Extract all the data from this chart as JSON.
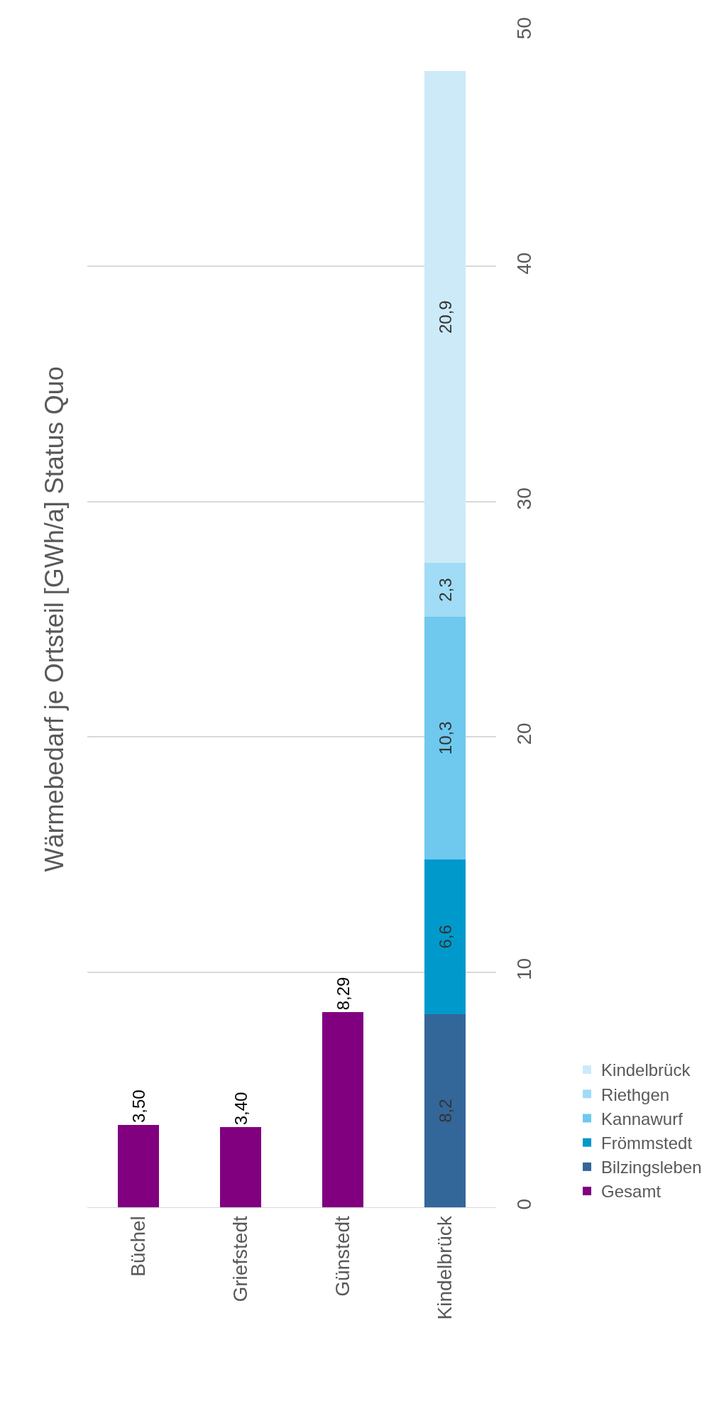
{
  "chart_data": {
    "type": "bar",
    "title": "Wärmebedarf je Ortsteil [GWh/a] Status Quo",
    "categories": [
      "Büchel",
      "Griefstedt",
      "Günstedt",
      "Kindelbrück"
    ],
    "stacked": true,
    "ylim": [
      0,
      50
    ],
    "yticks": [
      0,
      10,
      20,
      30,
      40,
      50
    ],
    "grid": "y",
    "legend": "right",
    "series": [
      {
        "name": "Gesamt",
        "color": "#800080",
        "values": [
          3.5,
          3.4,
          8.29,
          null
        ],
        "value_labels": [
          "3,50",
          "3,40",
          "8,29",
          null
        ]
      },
      {
        "name": "Bilzingsleben",
        "color": "#336699",
        "values": [
          null,
          null,
          null,
          8.2
        ],
        "value_labels": [
          null,
          null,
          null,
          "8,2"
        ]
      },
      {
        "name": "Frömmstedt",
        "color": "#0099cc",
        "values": [
          null,
          null,
          null,
          6.6
        ],
        "value_labels": [
          null,
          null,
          null,
          "6,6"
        ]
      },
      {
        "name": "Kannawurf",
        "color": "#6fc8ee",
        "values": [
          null,
          null,
          null,
          10.3
        ],
        "value_labels": [
          null,
          null,
          null,
          "10,3"
        ]
      },
      {
        "name": "Riethgen",
        "color": "#a0dcf5",
        "values": [
          null,
          null,
          null,
          2.3
        ],
        "value_labels": [
          null,
          null,
          null,
          "2,3"
        ]
      },
      {
        "name": "Kindelbrück",
        "color": "#cdeaf8",
        "values": [
          null,
          null,
          null,
          20.9
        ],
        "value_labels": [
          null,
          null,
          null,
          "20,9"
        ]
      }
    ]
  }
}
